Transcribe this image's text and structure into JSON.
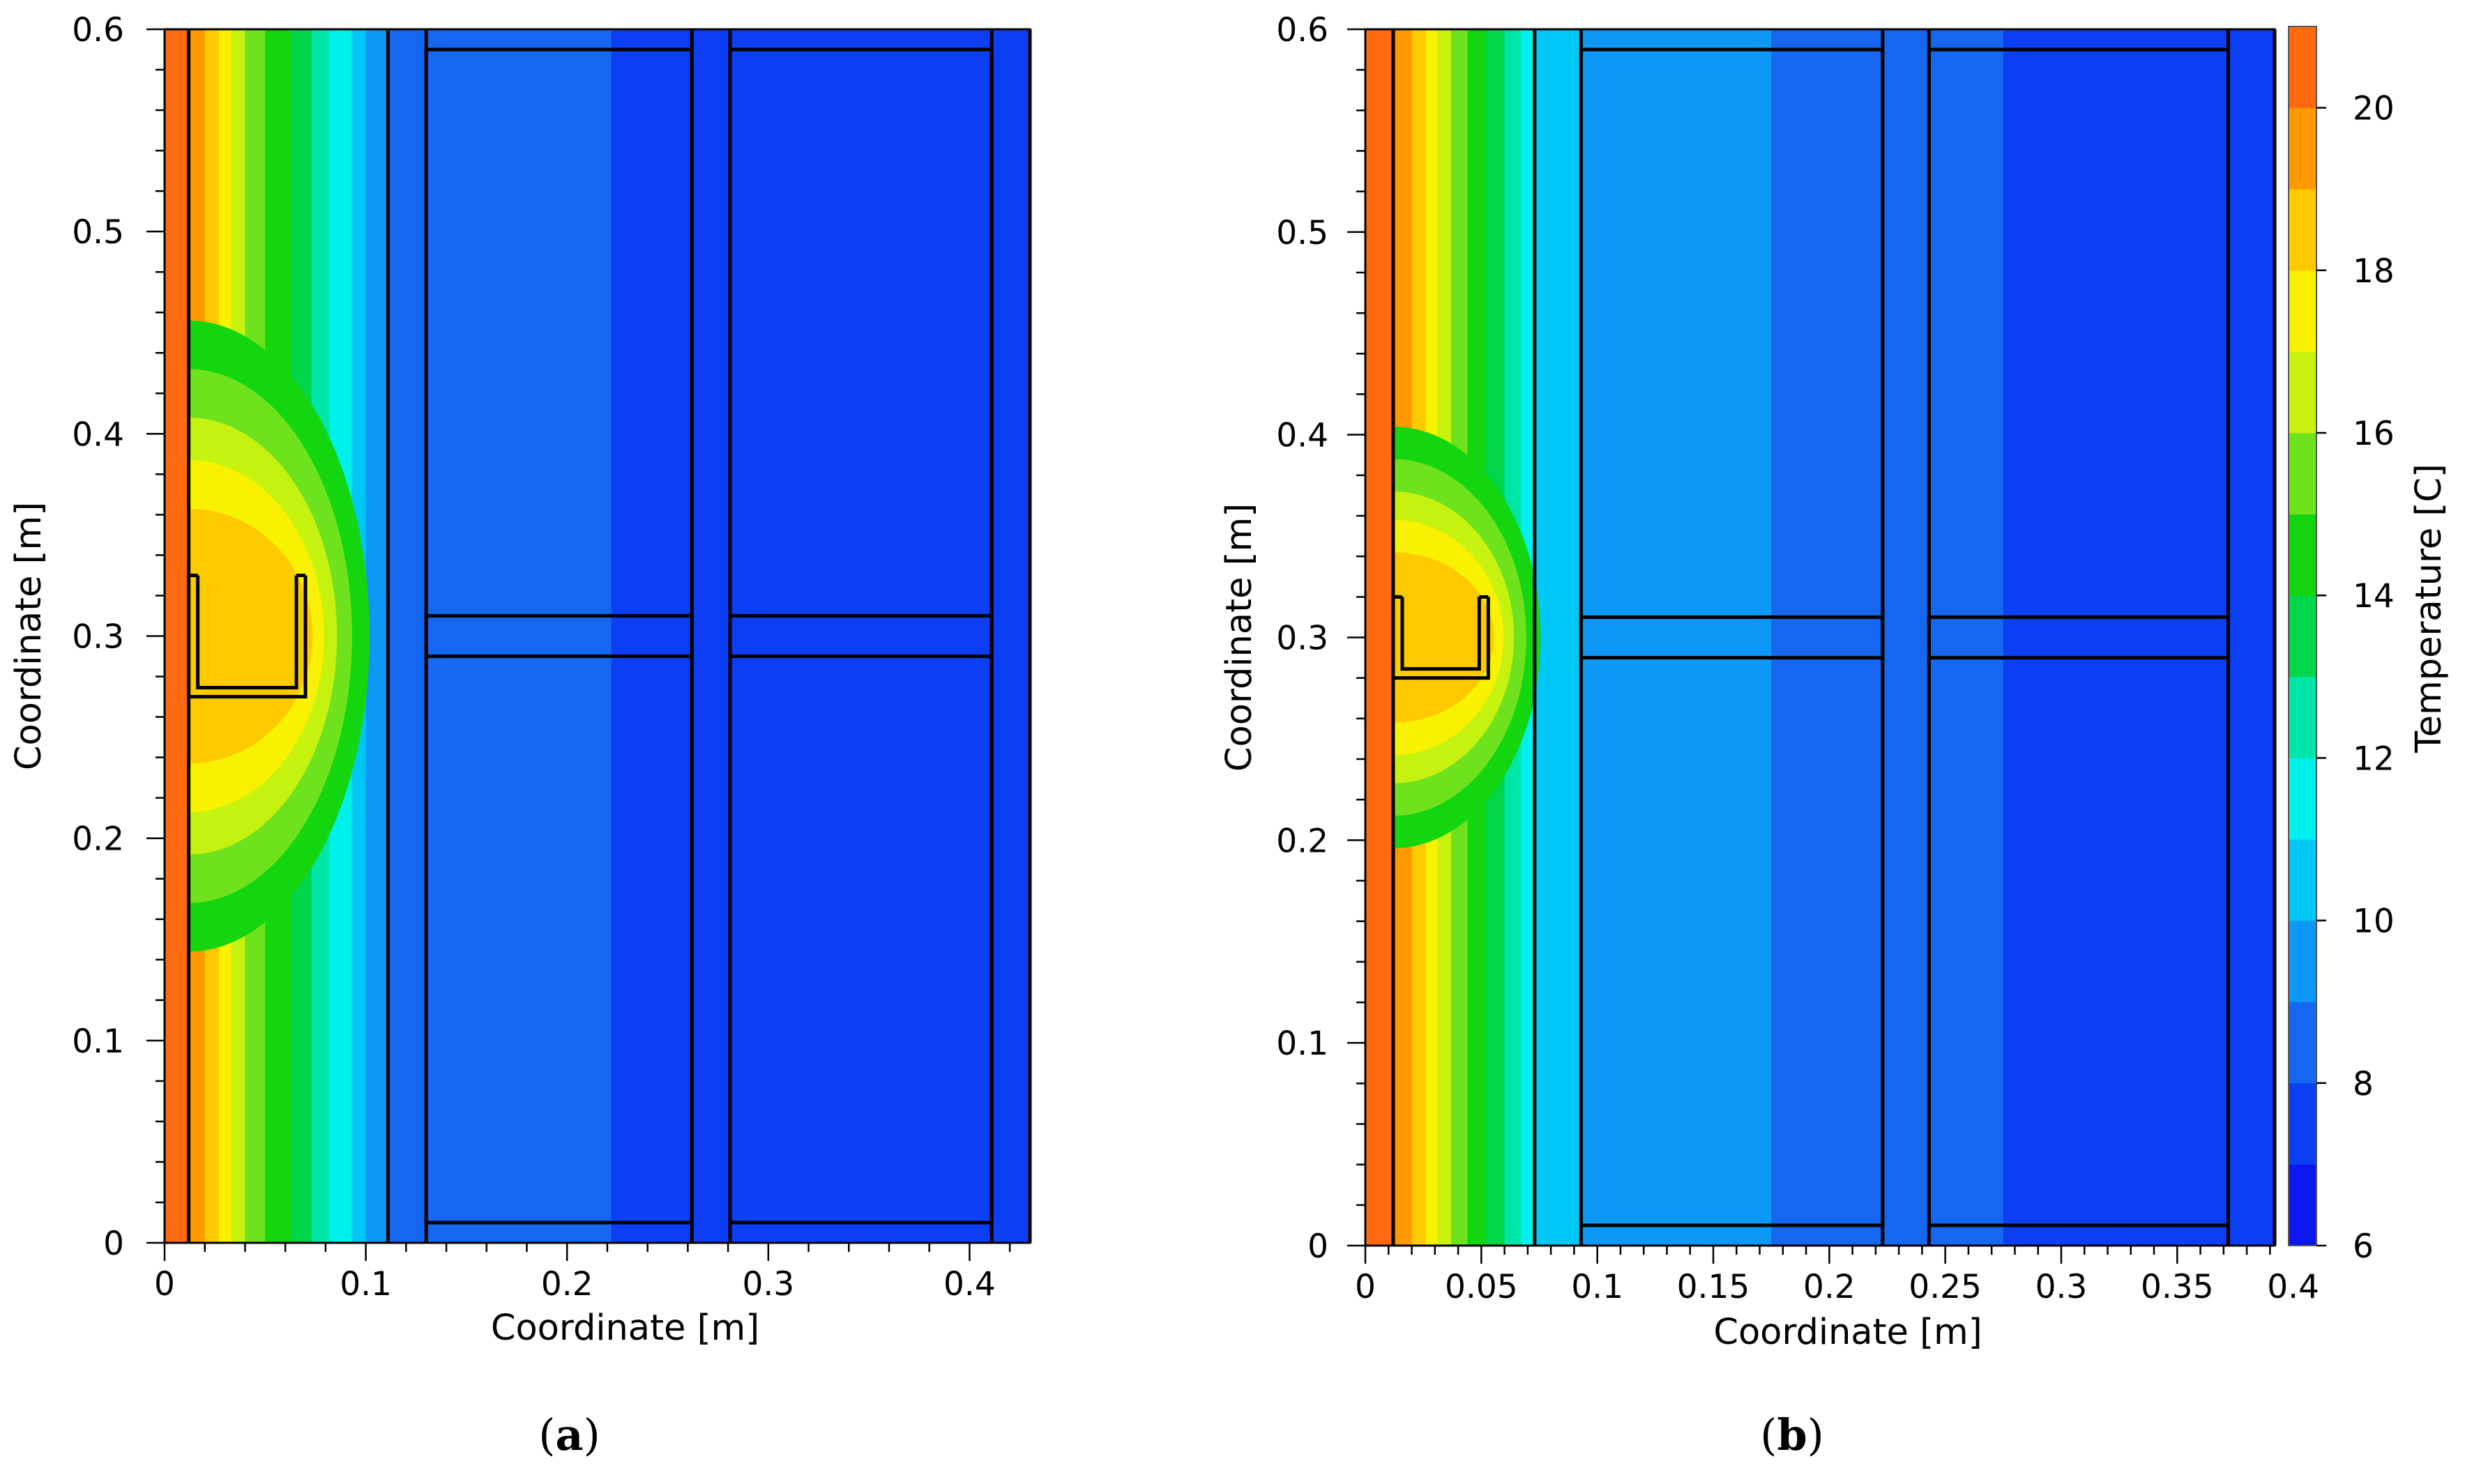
{
  "chart_data": [
    {
      "type": "heatmap",
      "panel_label": "a",
      "xlabel": "Coordinate [m]",
      "ylabel": "Coordinate [m]",
      "xlim": [
        0,
        0.43
      ],
      "ylim": [
        0,
        0.6
      ],
      "x_ticks": [
        0,
        0.1,
        0.2,
        0.3,
        0.4
      ],
      "x_tick_labels": [
        "0",
        "0.1",
        "0.2",
        "0.3",
        "0.4"
      ],
      "y_ticks": [
        0,
        0.1,
        0.2,
        0.3,
        0.4,
        0.5,
        0.6
      ],
      "y_tick_labels": [
        "0",
        "0.1",
        "0.2",
        "0.3",
        "0.4",
        "0.5",
        "0.6"
      ],
      "temperature_bands": [
        {
          "x0": 0.0,
          "x1": 0.012,
          "temperature": 20
        },
        {
          "x0": 0.012,
          "x1": 0.02,
          "temperature": 19
        },
        {
          "x0": 0.02,
          "x1": 0.027,
          "temperature": 18
        },
        {
          "x0": 0.027,
          "x1": 0.033,
          "temperature": 17
        },
        {
          "x0": 0.033,
          "x1": 0.04,
          "temperature": 16
        },
        {
          "x0": 0.04,
          "x1": 0.05,
          "temperature": 15
        },
        {
          "x0": 0.05,
          "x1": 0.063,
          "temperature": 14
        },
        {
          "x0": 0.063,
          "x1": 0.073,
          "temperature": 13
        },
        {
          "x0": 0.073,
          "x1": 0.082,
          "temperature": 12
        },
        {
          "x0": 0.082,
          "x1": 0.093,
          "temperature": 11
        },
        {
          "x0": 0.093,
          "x1": 0.1,
          "temperature": 10
        },
        {
          "x0": 0.1,
          "x1": 0.111,
          "temperature": 9
        },
        {
          "x0": 0.111,
          "x1": 0.222,
          "temperature": 8
        },
        {
          "x0": 0.222,
          "x1": 0.43,
          "temperature": 7
        }
      ],
      "thermal_bridge_peak_temperature": 18,
      "bracket_outline": {
        "x": [
          0.012,
          0.07
        ],
        "y": [
          0.27,
          0.33
        ]
      },
      "layer_boundaries_x": [
        0.012,
        0.111,
        0.13,
        0.262,
        0.281,
        0.411,
        0.43
      ],
      "blocks": [
        {
          "x0": 0.13,
          "x1": 0.262,
          "y0": 0.29,
          "y1": 0.59
        },
        {
          "x0": 0.281,
          "x1": 0.411,
          "y0": 0.29,
          "y1": 0.59
        },
        {
          "x0": 0.13,
          "x1": 0.262,
          "y0": 0.01,
          "y1": 0.31
        },
        {
          "x0": 0.281,
          "x1": 0.411,
          "y0": 0.01,
          "y1": 0.31
        }
      ]
    },
    {
      "type": "heatmap",
      "panel_label": "b",
      "xlabel": "Coordinate [m]",
      "ylabel": "Coordinate [m]",
      "xlim": [
        0,
        0.392
      ],
      "ylim": [
        0,
        0.6
      ],
      "x_ticks": [
        0,
        0.05,
        0.1,
        0.15,
        0.2,
        0.25,
        0.3,
        0.35,
        0.4
      ],
      "x_tick_labels": [
        "0",
        "0.05",
        "0.1",
        "0.15",
        "0.2",
        "0.25",
        "0.3",
        "0.35",
        "0.4"
      ],
      "y_ticks": [
        0,
        0.1,
        0.2,
        0.3,
        0.4,
        0.5,
        0.6
      ],
      "y_tick_labels": [
        "0",
        "0.1",
        "0.2",
        "0.3",
        "0.4",
        "0.5",
        "0.6"
      ],
      "temperature_bands": [
        {
          "x0": 0.0,
          "x1": 0.013,
          "temperature": 20
        },
        {
          "x0": 0.013,
          "x1": 0.02,
          "temperature": 19
        },
        {
          "x0": 0.02,
          "x1": 0.026,
          "temperature": 18
        },
        {
          "x0": 0.026,
          "x1": 0.031,
          "temperature": 17
        },
        {
          "x0": 0.031,
          "x1": 0.037,
          "temperature": 16
        },
        {
          "x0": 0.037,
          "x1": 0.044,
          "temperature": 15
        },
        {
          "x0": 0.044,
          "x1": 0.052,
          "temperature": 14
        },
        {
          "x0": 0.052,
          "x1": 0.06,
          "temperature": 13
        },
        {
          "x0": 0.06,
          "x1": 0.067,
          "temperature": 12
        },
        {
          "x0": 0.067,
          "x1": 0.073,
          "temperature": 11
        },
        {
          "x0": 0.073,
          "x1": 0.093,
          "temperature": 10
        },
        {
          "x0": 0.093,
          "x1": 0.175,
          "temperature": 9
        },
        {
          "x0": 0.175,
          "x1": 0.275,
          "temperature": 8
        },
        {
          "x0": 0.275,
          "x1": 0.392,
          "temperature": 7
        }
      ],
      "thermal_bridge_peak_temperature": 18,
      "bracket_outline": {
        "x": [
          0.012,
          0.053
        ],
        "y": [
          0.28,
          0.32
        ]
      },
      "layer_boundaries_x": [
        0.012,
        0.073,
        0.093,
        0.223,
        0.243,
        0.372,
        0.392
      ],
      "blocks": [
        {
          "x0": 0.093,
          "x1": 0.223,
          "y0": 0.29,
          "y1": 0.59
        },
        {
          "x0": 0.243,
          "x1": 0.372,
          "y0": 0.29,
          "y1": 0.59
        },
        {
          "x0": 0.093,
          "x1": 0.223,
          "y0": 0.01,
          "y1": 0.31
        },
        {
          "x0": 0.243,
          "x1": 0.372,
          "y0": 0.01,
          "y1": 0.31
        }
      ]
    }
  ],
  "colorbar": {
    "label": "Temperature [C]",
    "range": [
      6,
      21
    ],
    "ticks": [
      6,
      8,
      10,
      12,
      14,
      16,
      18,
      20
    ],
    "tick_labels": [
      "6",
      "8",
      "10",
      "12",
      "14",
      "16",
      "18",
      "20"
    ],
    "levels": [
      {
        "temperature": 6,
        "color": "#0a17ef"
      },
      {
        "temperature": 7,
        "color": "#0c3ff4"
      },
      {
        "temperature": 8,
        "color": "#1567f0"
      },
      {
        "temperature": 9,
        "color": "#0c98f4"
      },
      {
        "temperature": 10,
        "color": "#00c8f6"
      },
      {
        "temperature": 11,
        "color": "#00f0ec"
      },
      {
        "temperature": 12,
        "color": "#00e6a8"
      },
      {
        "temperature": 13,
        "color": "#00d64a"
      },
      {
        "temperature": 14,
        "color": "#13d60f"
      },
      {
        "temperature": 15,
        "color": "#6fe21e"
      },
      {
        "temperature": 16,
        "color": "#c6f20f"
      },
      {
        "temperature": 17,
        "color": "#f8f200"
      },
      {
        "temperature": 18,
        "color": "#fdca00"
      },
      {
        "temperature": 19,
        "color": "#fd9a00"
      },
      {
        "temperature": 20,
        "color": "#ff6a10"
      }
    ]
  }
}
